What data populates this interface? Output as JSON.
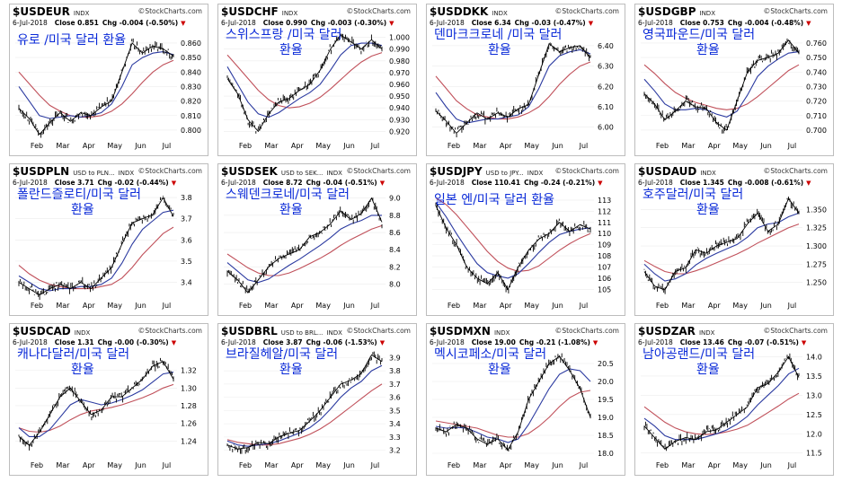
{
  "brand": "StockCharts.com",
  "xlabels_default": [
    "Feb",
    "Mar",
    "Apr",
    "May",
    "Jun",
    "Jul"
  ],
  "colors": {
    "price": "#000000",
    "ma_short": "#2b3aa0",
    "ma_long": "#c0505a",
    "korean": "#0a2ad8"
  },
  "chart_data": [
    {
      "type": "line",
      "symbol": "$USDEUR",
      "sub": "INDX",
      "date": "6-Jul-2018",
      "close": "Close 0.851",
      "chg": "Chg -0.004 (-0.50%)",
      "ko_title": [
        "유로 /미국 달러 환율"
      ],
      "yticks": [
        "0.860",
        "0.850",
        "0.840",
        "0.830",
        "0.820",
        "0.810",
        "0.800"
      ],
      "ylim": [
        0.795,
        0.868
      ],
      "path": [
        0.815,
        0.808,
        0.797,
        0.805,
        0.812,
        0.806,
        0.812,
        0.81,
        0.816,
        0.82,
        0.84,
        0.86,
        0.853,
        0.858,
        0.856,
        0.851
      ],
      "ma1": [
        0.83,
        0.82,
        0.81,
        0.808,
        0.809,
        0.81,
        0.809,
        0.81,
        0.812,
        0.818,
        0.83,
        0.845,
        0.85,
        0.853,
        0.854,
        0.852
      ],
      "ma2": [
        0.84,
        0.832,
        0.824,
        0.817,
        0.813,
        0.81,
        0.809,
        0.809,
        0.81,
        0.813,
        0.818,
        0.825,
        0.833,
        0.84,
        0.845,
        0.848
      ]
    },
    {
      "type": "line",
      "symbol": "$USDCHF",
      "sub": "INDX",
      "date": "6-Jul-2018",
      "close": "Close 0.990",
      "chg": "Chg -0.003 (-0.30%)",
      "ko_title": [
        "스위스프랑 /미국 달러",
        "환율"
      ],
      "yticks": [
        "1.000",
        "0.990",
        "0.980",
        "0.970",
        "0.960",
        "0.950",
        "0.940",
        "0.930",
        "0.920"
      ],
      "ylim": [
        0.915,
        1.005
      ],
      "path": [
        0.965,
        0.952,
        0.93,
        0.92,
        0.935,
        0.945,
        0.948,
        0.955,
        0.96,
        0.972,
        0.99,
        1.002,
        0.996,
        0.99,
        0.998,
        0.99
      ],
      "ma1": [
        0.975,
        0.96,
        0.945,
        0.935,
        0.932,
        0.936,
        0.942,
        0.948,
        0.953,
        0.96,
        0.972,
        0.985,
        0.993,
        0.995,
        0.995,
        0.993
      ],
      "ma2": [
        0.985,
        0.975,
        0.965,
        0.955,
        0.947,
        0.942,
        0.94,
        0.941,
        0.944,
        0.949,
        0.956,
        0.964,
        0.972,
        0.979,
        0.984,
        0.987
      ]
    },
    {
      "type": "line",
      "symbol": "$USDDKK",
      "sub": "INDX",
      "date": "6-Jul-2018",
      "close": "Close 6.34",
      "chg": "Chg -0.03 (-0.47%)",
      "ko_title": [
        "덴마크크로네 /미국 달러",
        "환율"
      ],
      "yticks": [
        "6.40",
        "6.30",
        "6.20",
        "6.10",
        "6.00"
      ],
      "ylim": [
        5.95,
        6.47
      ],
      "path": [
        6.08,
        6.03,
        5.97,
        6.02,
        6.07,
        6.04,
        6.07,
        6.05,
        6.09,
        6.11,
        6.26,
        6.41,
        6.37,
        6.39,
        6.4,
        6.34
      ],
      "ma1": [
        6.17,
        6.1,
        6.04,
        6.02,
        6.03,
        6.04,
        6.04,
        6.05,
        6.06,
        6.1,
        6.19,
        6.3,
        6.35,
        6.37,
        6.38,
        6.36
      ],
      "ma2": [
        6.25,
        6.19,
        6.13,
        6.09,
        6.06,
        6.05,
        6.04,
        6.04,
        6.05,
        6.07,
        6.1,
        6.15,
        6.21,
        6.26,
        6.3,
        6.32
      ]
    },
    {
      "type": "line",
      "symbol": "$USDGBP",
      "sub": "INDX",
      "date": "6-Jul-2018",
      "close": "Close 0.753",
      "chg": "Chg -0.004 (-0.48%)",
      "ko_title": [
        "영국파운드/미국 달러",
        "환율"
      ],
      "yticks": [
        "0.760",
        "0.750",
        "0.740",
        "0.730",
        "0.720",
        "0.710",
        "0.700"
      ],
      "ylim": [
        0.695,
        0.768
      ],
      "path": [
        0.725,
        0.718,
        0.707,
        0.713,
        0.72,
        0.716,
        0.715,
        0.705,
        0.7,
        0.72,
        0.74,
        0.748,
        0.75,
        0.753,
        0.762,
        0.753
      ],
      "ma1": [
        0.735,
        0.727,
        0.718,
        0.714,
        0.714,
        0.715,
        0.714,
        0.711,
        0.709,
        0.713,
        0.724,
        0.737,
        0.744,
        0.749,
        0.753,
        0.754
      ],
      "ma2": [
        0.745,
        0.739,
        0.732,
        0.726,
        0.722,
        0.719,
        0.717,
        0.715,
        0.714,
        0.715,
        0.718,
        0.723,
        0.729,
        0.735,
        0.741,
        0.745
      ]
    },
    {
      "type": "line",
      "symbol": "$USDPLN",
      "sub": "USD to PLN...",
      "sub2": "INDX",
      "date": "6-Jul-2018",
      "close": "Close 3.71",
      "chg": "Chg -0.02 (-0.44%)",
      "ko_title": [
        "폴란드즐로티/미국 달러",
        "환율"
      ],
      "yticks": [
        "3.8",
        "3.7",
        "3.6",
        "3.5",
        "3.4"
      ],
      "ylim": [
        3.33,
        3.83
      ],
      "path": [
        3.4,
        3.37,
        3.34,
        3.37,
        3.39,
        3.37,
        3.4,
        3.37,
        3.42,
        3.47,
        3.58,
        3.68,
        3.7,
        3.72,
        3.8,
        3.71
      ],
      "ma1": [
        3.43,
        3.4,
        3.37,
        3.36,
        3.37,
        3.37,
        3.38,
        3.38,
        3.39,
        3.42,
        3.49,
        3.58,
        3.65,
        3.69,
        3.73,
        3.74
      ],
      "ma2": [
        3.48,
        3.44,
        3.41,
        3.39,
        3.38,
        3.37,
        3.37,
        3.37,
        3.38,
        3.39,
        3.42,
        3.47,
        3.53,
        3.58,
        3.63,
        3.66
      ]
    },
    {
      "type": "line",
      "symbol": "$USDSEK",
      "sub": "USD to SEK...",
      "sub2": "INDX",
      "date": "6-Jul-2018",
      "close": "Close 8.72",
      "chg": "Chg -0.04 (-0.51%)",
      "ko_title": [
        "스웨덴크로네/미국 달러",
        "환율"
      ],
      "yticks": [
        "9.0",
        "8.8",
        "8.6",
        "8.4",
        "8.2",
        "8.0"
      ],
      "ylim": [
        7.85,
        9.08
      ],
      "path": [
        8.15,
        8.05,
        7.9,
        8.05,
        8.2,
        8.3,
        8.35,
        8.4,
        8.55,
        8.6,
        8.7,
        8.85,
        8.75,
        8.82,
        9.0,
        8.72
      ],
      "ma1": [
        8.25,
        8.15,
        8.05,
        8.02,
        8.06,
        8.14,
        8.22,
        8.29,
        8.37,
        8.45,
        8.54,
        8.64,
        8.7,
        8.74,
        8.8,
        8.8
      ],
      "ma2": [
        8.35,
        8.27,
        8.19,
        8.13,
        8.1,
        8.1,
        8.13,
        8.18,
        8.24,
        8.3,
        8.37,
        8.45,
        8.52,
        8.58,
        8.64,
        8.68
      ]
    },
    {
      "type": "line",
      "symbol": "$USDJPY",
      "sub": "USD to JPY...",
      "sub2": "INDX",
      "date": "6-Jul-2018",
      "close": "Close 110.41",
      "chg": "Chg -0.24 (-0.21%)",
      "ko_title": [
        "일본 엔/미국 달러 환율"
      ],
      "yticks": [
        "113",
        "112",
        "111",
        "110",
        "109",
        "108",
        "107",
        "106",
        "105"
      ],
      "ylim": [
        104.3,
        113.8
      ],
      "path": [
        112.5,
        110.5,
        109,
        107,
        106,
        105.5,
        106.5,
        105,
        107,
        108.5,
        109.5,
        110,
        111,
        110.2,
        110.8,
        110.4
      ],
      "ma1": [
        112.8,
        111.5,
        110,
        108.6,
        107.3,
        106.5,
        106.2,
        106,
        106.4,
        107.3,
        108.3,
        109.2,
        109.9,
        110.2,
        110.4,
        110.5
      ],
      "ma2": [
        113.2,
        112.6,
        111.7,
        110.6,
        109.5,
        108.4,
        107.5,
        106.9,
        106.6,
        106.7,
        107.1,
        107.8,
        108.5,
        109.1,
        109.6,
        110
      ]
    },
    {
      "type": "line",
      "symbol": "$USDAUD",
      "sub": "INDX",
      "date": "6-Jul-2018",
      "close": "Close 1.345",
      "chg": "Chg -0.008 (-0.61%)",
      "ko_title": [
        "호주달러/미국 달러",
        "환율"
      ],
      "yticks": [
        "1.350",
        "1.325",
        "1.300",
        "1.275",
        "1.250"
      ],
      "ylim": [
        1.23,
        1.375
      ],
      "path": [
        1.265,
        1.245,
        1.24,
        1.265,
        1.27,
        1.295,
        1.29,
        1.3,
        1.305,
        1.31,
        1.33,
        1.345,
        1.32,
        1.33,
        1.365,
        1.345
      ],
      "ma1": [
        1.275,
        1.262,
        1.252,
        1.255,
        1.262,
        1.274,
        1.283,
        1.29,
        1.296,
        1.302,
        1.312,
        1.325,
        1.33,
        1.332,
        1.34,
        1.345
      ],
      "ma2": [
        1.28,
        1.272,
        1.265,
        1.262,
        1.262,
        1.266,
        1.271,
        1.277,
        1.283,
        1.289,
        1.296,
        1.304,
        1.311,
        1.318,
        1.325,
        1.33
      ]
    },
    {
      "type": "line",
      "symbol": "$USDCAD",
      "sub": "INDX",
      "date": "6-Jul-2018",
      "close": "Close 1.31",
      "chg": "Chg -0.00 (-0.30%)",
      "ko_title": [
        "캐나다달러/미국 달러",
        "환율"
      ],
      "yticks": [
        "1.32",
        "1.30",
        "1.28",
        "1.26",
        "1.24"
      ],
      "ylim": [
        1.222,
        1.342
      ],
      "path": [
        1.245,
        1.235,
        1.25,
        1.27,
        1.29,
        1.3,
        1.285,
        1.27,
        1.275,
        1.29,
        1.29,
        1.3,
        1.31,
        1.325,
        1.33,
        1.31
      ],
      "ma1": [
        1.255,
        1.245,
        1.245,
        1.253,
        1.267,
        1.281,
        1.287,
        1.284,
        1.281,
        1.283,
        1.287,
        1.292,
        1.298,
        1.307,
        1.316,
        1.318
      ],
      "ma2": [
        1.255,
        1.251,
        1.25,
        1.252,
        1.257,
        1.264,
        1.27,
        1.274,
        1.276,
        1.278,
        1.281,
        1.285,
        1.289,
        1.294,
        1.3,
        1.304
      ]
    },
    {
      "type": "line",
      "symbol": "$USDBRL",
      "sub": "USD to BRL...",
      "sub2": "INDX",
      "date": "6-Jul-2018",
      "close": "Close 3.87",
      "chg": "Chg -0.06 (-1.53%)",
      "ko_title": [
        "브라질헤알/미국 달러",
        "환율"
      ],
      "yticks": [
        "3.9",
        "3.8",
        "3.7",
        "3.6",
        "3.5",
        "3.4",
        "3.3",
        "3.2"
      ],
      "ylim": [
        3.15,
        3.95
      ],
      "path": [
        3.24,
        3.21,
        3.22,
        3.26,
        3.25,
        3.3,
        3.33,
        3.35,
        3.42,
        3.5,
        3.6,
        3.7,
        3.73,
        3.78,
        3.92,
        3.87
      ],
      "ma1": [
        3.27,
        3.24,
        3.23,
        3.24,
        3.25,
        3.27,
        3.3,
        3.33,
        3.37,
        3.43,
        3.51,
        3.6,
        3.67,
        3.72,
        3.8,
        3.84
      ],
      "ma2": [
        3.28,
        3.26,
        3.25,
        3.24,
        3.24,
        3.25,
        3.27,
        3.29,
        3.32,
        3.36,
        3.41,
        3.47,
        3.53,
        3.59,
        3.65,
        3.7
      ]
    },
    {
      "type": "line",
      "symbol": "$USDMXN",
      "sub": "INDX",
      "date": "6-Jul-2018",
      "close": "Close 19.00",
      "chg": "Chg -0.21 (-1.08%)",
      "ko_title": [
        "멕시코페소/미국 달러",
        "환율"
      ],
      "yticks": [
        "20.5",
        "20.0",
        "19.5",
        "19.0",
        "18.5",
        "18.0"
      ],
      "ylim": [
        17.9,
        20.85
      ],
      "path": [
        18.7,
        18.6,
        18.8,
        18.7,
        18.4,
        18.25,
        18.4,
        18.1,
        18.6,
        19.5,
        20.0,
        20.5,
        20.7,
        20.3,
        19.8,
        19.0
      ],
      "ma1": [
        18.75,
        18.7,
        18.72,
        18.7,
        18.58,
        18.45,
        18.4,
        18.3,
        18.4,
        18.8,
        19.3,
        19.8,
        20.2,
        20.35,
        20.3,
        20.0
      ],
      "ma2": [
        18.9,
        18.85,
        18.8,
        18.75,
        18.7,
        18.6,
        18.5,
        18.45,
        18.45,
        18.55,
        18.75,
        19.0,
        19.3,
        19.55,
        19.7,
        19.75
      ]
    },
    {
      "type": "line",
      "symbol": "$USDZAR",
      "sub": "INDX",
      "date": "6-Jul-2018",
      "close": "Close 13.46",
      "chg": "Chg -0.07 (-0.51%)",
      "ko_title": [
        "남아공랜드/미국 달러",
        "환율"
      ],
      "yticks": [
        "14.0",
        "13.5",
        "13.0",
        "12.5",
        "12.0",
        "11.5"
      ],
      "ylim": [
        11.4,
        14.15
      ],
      "path": [
        12.2,
        11.9,
        11.6,
        11.8,
        11.9,
        11.85,
        12.05,
        12.1,
        12.3,
        12.5,
        12.7,
        13.2,
        13.3,
        13.6,
        14.0,
        13.46
      ],
      "ma1": [
        12.4,
        12.2,
        11.95,
        11.85,
        11.85,
        11.85,
        11.92,
        12.0,
        12.1,
        12.25,
        12.45,
        12.75,
        13.0,
        13.25,
        13.55,
        13.7
      ],
      "ma2": [
        12.7,
        12.5,
        12.3,
        12.15,
        12.05,
        12.0,
        11.98,
        12.0,
        12.05,
        12.12,
        12.22,
        12.38,
        12.55,
        12.72,
        12.9,
        13.05
      ]
    }
  ]
}
